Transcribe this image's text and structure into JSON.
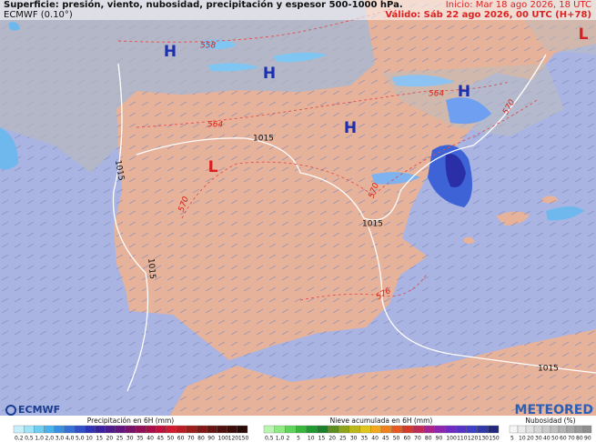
{
  "header": {
    "title": "Superficie: presión, viento, nubosidad, precipitación y espesor 500-1000 hPa.",
    "model": "ECMWF (0.10°)",
    "init": "Inicio: Mar 18 ago 2026, 18 UTC",
    "valid": "Válido: Sáb 22 ago 2026, 00 UTC (H+78)"
  },
  "map_labels": {
    "pressure_centers": [
      "H",
      "H",
      "H",
      "H",
      "L",
      "L"
    ],
    "isobars": [
      "1015",
      "1015",
      "1015",
      "1015",
      "1015"
    ],
    "thickness": [
      "558",
      "564",
      "564",
      "570",
      "570",
      "570",
      "576"
    ]
  },
  "logos": {
    "left": "ECMWF",
    "right": "METEORED"
  },
  "legends": [
    {
      "title": "Precipitación en 6H (mm)",
      "ticks": [
        "0,2",
        "0,5",
        "1,0",
        "2,0",
        "3,0",
        "4,0",
        "5,0",
        "10",
        "15",
        "20",
        "25",
        "30",
        "35",
        "40",
        "45",
        "50",
        "60",
        "70",
        "80",
        "90",
        "100",
        "120",
        "150"
      ],
      "colors": [
        "#c6f0fb",
        "#9ee3f7",
        "#6fcdf2",
        "#49b2ea",
        "#3b8fe0",
        "#3570d6",
        "#3150c8",
        "#2f34b6",
        "#3a21a0",
        "#4d1a8f",
        "#62157c",
        "#7a126a",
        "#92105a",
        "#a80f4a",
        "#bd123c",
        "#cf1a2f",
        "#b81d23",
        "#9c1b1b",
        "#801816",
        "#661512",
        "#4f110f",
        "#3a0d0b",
        "#2a0a08"
      ]
    },
    {
      "title": "Nieve acumulada en 6H (mm)",
      "ticks": [
        "0,5",
        "1,0",
        "2",
        "5",
        "10",
        "15",
        "20",
        "25",
        "30",
        "35",
        "40",
        "45",
        "50",
        "60",
        "70",
        "80",
        "90",
        "100",
        "110",
        "120",
        "130",
        "150"
      ],
      "colors": [
        "#b9f5b0",
        "#8fea84",
        "#5fd35c",
        "#37b83d",
        "#1f9a2f",
        "#1d7f2a",
        "#5a8f1f",
        "#8ea31a",
        "#bdb81a",
        "#e0c51f",
        "#f2a81f",
        "#ee8020",
        "#e35a22",
        "#d33a2a",
        "#c12a55",
        "#a8248a",
        "#8e25b1",
        "#6d2bc3",
        "#5434c6",
        "#3e3fc4",
        "#2f3aa8",
        "#22287c"
      ]
    },
    {
      "title": "Nubosidad (%)",
      "ticks": [
        "5",
        "10",
        "20",
        "30",
        "40",
        "50",
        "60",
        "70",
        "80",
        "90"
      ],
      "colors": [
        "#f5f5f5",
        "#ebebeb",
        "#e0e0e0",
        "#d5d5d5",
        "#cacaca",
        "#bfbfbf",
        "#b3b3b3",
        "#a7a7a7",
        "#9b9b9b",
        "#8f8f8f"
      ]
    }
  ]
}
